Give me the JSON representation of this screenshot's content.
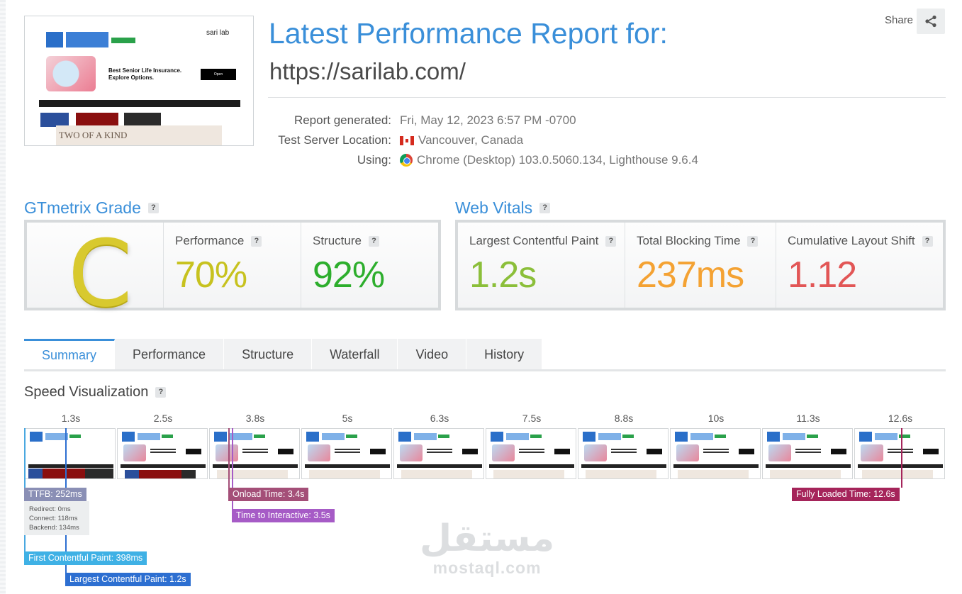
{
  "header": {
    "title": "Latest Performance Report for:",
    "url": "https://sarilab.com/",
    "share_label": "Share"
  },
  "thumbnail": {
    "site_name": "sari lab",
    "ad_headline": "Best Senior Life Insurance. Explore Options.",
    "ad_button": "Open",
    "banner_text": "TWO OF A KIND"
  },
  "meta": {
    "report_generated_label": "Report generated:",
    "report_generated_value": "Fri, May 12, 2023 6:57 PM -0700",
    "location_label": "Test Server Location:",
    "location_value": "Vancouver, Canada",
    "using_label": "Using:",
    "using_value": "Chrome (Desktop) 103.0.5060.134, Lighthouse 9.6.4"
  },
  "grade": {
    "heading": "GTmetrix Grade",
    "letter": "C",
    "performance_label": "Performance",
    "performance_value": "70%",
    "structure_label": "Structure",
    "structure_value": "92%"
  },
  "vitals": {
    "heading": "Web Vitals",
    "lcp_label": "Largest Contentful Paint",
    "lcp_value": "1.2s",
    "tbt_label": "Total Blocking Time",
    "tbt_value": "237ms",
    "cls_label": "Cumulative Layout Shift",
    "cls_value": "1.12"
  },
  "colors": {
    "accent": "#3a8fd9",
    "grade_c": "#d8c92e",
    "performance": "#c7c21f",
    "structure": "#2dae2d",
    "lcp": "#8bbf3a",
    "tbt": "#f4a233",
    "cls": "#e25656"
  },
  "tabs": [
    "Summary",
    "Performance",
    "Structure",
    "Waterfall",
    "Video",
    "History"
  ],
  "speed": {
    "heading": "Speed Visualization",
    "times": [
      "1.3s",
      "2.5s",
      "3.8s",
      "5s",
      "6.3s",
      "7.5s",
      "8.8s",
      "10s",
      "11.3s",
      "12.6s"
    ],
    "markers": {
      "ttfb": "TTFB: 252ms",
      "redirect": "Redirect: 0ms",
      "connect": "Connect: 118ms",
      "backend": "Backend: 134ms",
      "onload": "Onload Time: 3.4s",
      "tti": "Time to Interactive: 3.5s",
      "fully_loaded": "Fully Loaded Time: 12.6s",
      "fcp": "First Contentful Paint: 398ms",
      "lcp": "Largest Contentful Paint: 1.2s"
    }
  },
  "watermark": {
    "arabic": "مستقل",
    "latin": "mostaql.com"
  }
}
